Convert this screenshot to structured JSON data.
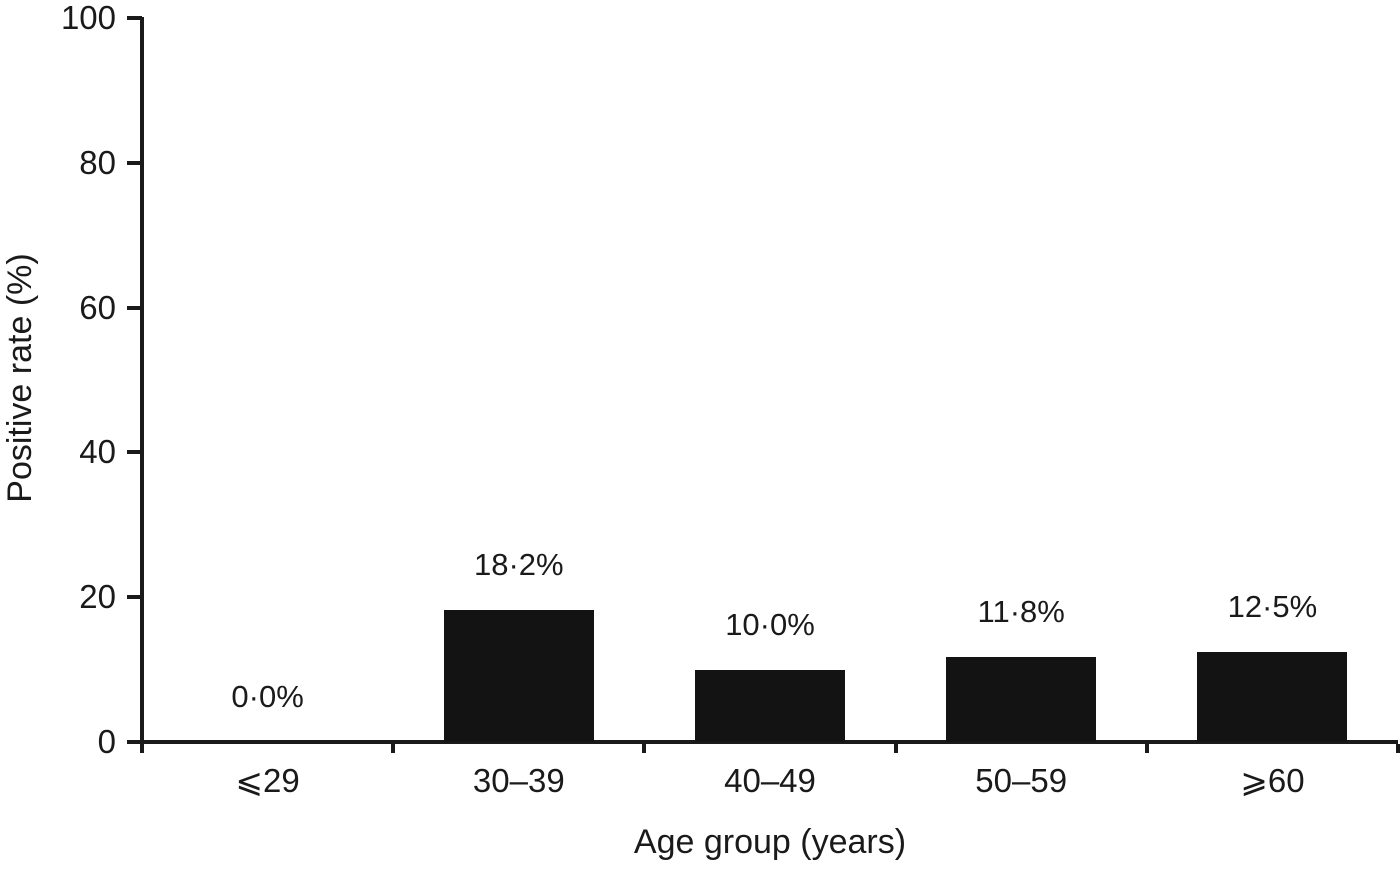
{
  "chart_data": {
    "type": "bar",
    "title": "",
    "xlabel": "Age group (years)",
    "ylabel": "Positive rate (%)",
    "categories": [
      "⩽29",
      "30–39",
      "40–49",
      "50–59",
      "⩾60"
    ],
    "values": [
      0.0,
      18.2,
      10.0,
      11.8,
      12.5
    ],
    "value_labels": [
      "0·0%",
      "18·2%",
      "10·0%",
      "11·8%",
      "12·5%"
    ],
    "yticks": [
      "0",
      "20",
      "40",
      "60",
      "80",
      "100"
    ],
    "ytick_values": [
      0,
      20,
      40,
      60,
      80,
      100
    ],
    "ylim": [
      0,
      100
    ],
    "grid": false,
    "legend": null,
    "bar_color": "#131313",
    "axis_color": "#1a1a1a",
    "text_color": "#1a1a1a",
    "background": "#ffffff"
  }
}
